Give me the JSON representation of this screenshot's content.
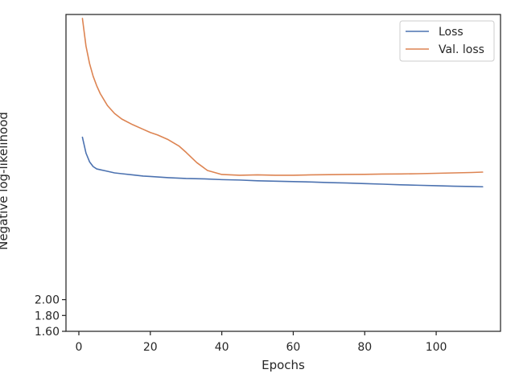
{
  "chart_data": {
    "type": "line",
    "title": "",
    "xlabel": "Epochs",
    "ylabel": "Negative log-likelihood",
    "xlim": [
      -3.6,
      118
    ],
    "ylim": [
      1.6,
      5.6
    ],
    "xticks": [
      0,
      20,
      40,
      60,
      80,
      100
    ],
    "xtick_labels": [
      "0",
      "20",
      "40",
      "60",
      "80",
      "100"
    ],
    "yticks": [
      1.6,
      1.8,
      2.0
    ],
    "ytick_labels": [
      "1.60",
      "1.80",
      "2.00"
    ],
    "grid": false,
    "legend_position": "top-right",
    "series": [
      {
        "name": "Loss",
        "color": "#4c72b0",
        "x": [
          1,
          2,
          3,
          4,
          5,
          6,
          8,
          10,
          12,
          15,
          18,
          20,
          25,
          30,
          35,
          40,
          45,
          50,
          55,
          60,
          65,
          70,
          75,
          80,
          85,
          90,
          95,
          100,
          105,
          110,
          113
        ],
        "y": [
          4.05,
          3.85,
          3.74,
          3.68,
          3.65,
          3.64,
          3.62,
          3.6,
          3.59,
          3.575,
          3.56,
          3.555,
          3.54,
          3.53,
          3.525,
          3.515,
          3.51,
          3.5,
          3.495,
          3.49,
          3.485,
          3.478,
          3.472,
          3.465,
          3.458,
          3.45,
          3.444,
          3.438,
          3.432,
          3.428,
          3.425
        ]
      },
      {
        "name": "Val. loss",
        "color": "#dd8452",
        "x": [
          1,
          2,
          3,
          4,
          5,
          6,
          8,
          10,
          12,
          15,
          18,
          20,
          22,
          25,
          28,
          30,
          33,
          36,
          40,
          45,
          50,
          55,
          60,
          65,
          70,
          75,
          80,
          85,
          90,
          95,
          100,
          105,
          110,
          113
        ],
        "y": [
          5.55,
          5.2,
          4.98,
          4.82,
          4.7,
          4.6,
          4.45,
          4.35,
          4.28,
          4.21,
          4.15,
          4.11,
          4.08,
          4.02,
          3.94,
          3.86,
          3.73,
          3.63,
          3.58,
          3.57,
          3.575,
          3.57,
          3.57,
          3.575,
          3.578,
          3.58,
          3.582,
          3.585,
          3.587,
          3.59,
          3.595,
          3.6,
          3.605,
          3.61
        ]
      }
    ]
  }
}
